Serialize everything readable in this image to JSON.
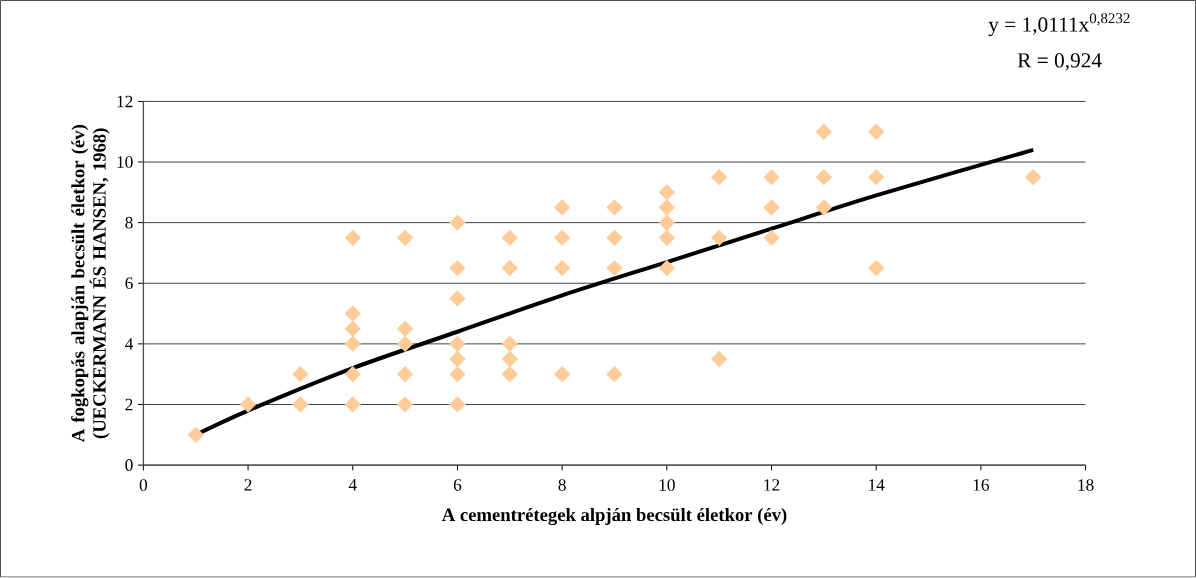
{
  "chart_data": {
    "type": "scatter",
    "xlabel": "A cementrétegek alpján becsült életkor (év)",
    "ylabel": "A fogkopás alapján becsült életkor (év) (UECKERMANN ÉS HANSEN, 1968)",
    "xlim": [
      0,
      18
    ],
    "xticks": [
      0,
      2,
      4,
      6,
      8,
      10,
      12,
      14,
      16,
      18
    ],
    "ylim": [
      0,
      12
    ],
    "yticks": [
      0,
      2,
      4,
      6,
      8,
      10,
      12
    ],
    "grid": "y",
    "annotations": [
      "y = 1,0111x$^{0,8232}$",
      "R = 0,924"
    ],
    "series": [
      {
        "marker": "diamond",
        "color": "#ffcc99",
        "x": [
          1,
          2,
          3,
          3,
          4,
          4,
          4,
          4,
          4,
          4,
          5,
          5,
          5,
          5,
          5,
          6,
          6,
          6,
          6,
          6,
          6,
          6,
          7,
          7,
          7,
          7,
          7,
          8,
          8,
          8,
          8,
          9,
          9,
          9,
          9,
          10,
          10,
          10,
          10,
          10,
          11,
          11,
          11,
          12,
          12,
          12,
          13,
          13,
          13,
          14,
          14,
          14,
          17
        ],
        "values": [
          1,
          2,
          3,
          2,
          7.5,
          5,
          4.5,
          4,
          3,
          2,
          7.5,
          4.5,
          4,
          3,
          2,
          8,
          6.5,
          5.5,
          4,
          3.5,
          3,
          2,
          7.5,
          6.5,
          4,
          3.5,
          3,
          8.5,
          7.5,
          6.5,
          3,
          8.5,
          7.5,
          6.5,
          3,
          9,
          8.5,
          8,
          7.5,
          6.5,
          9.5,
          7.5,
          3.5,
          9.5,
          8.5,
          7.5,
          11,
          9.5,
          8.5,
          11,
          9.5,
          6.5,
          9.5
        ]
      },
      {
        "type": "line",
        "marker": "none",
        "color": "#000000",
        "x": [
          1,
          2,
          4,
          6,
          8,
          10,
          12,
          14,
          17
        ],
        "values": [
          1.0,
          1.8,
          3.2,
          4.4,
          5.6,
          6.7,
          7.8,
          8.9,
          10.4
        ]
      }
    ]
  }
}
